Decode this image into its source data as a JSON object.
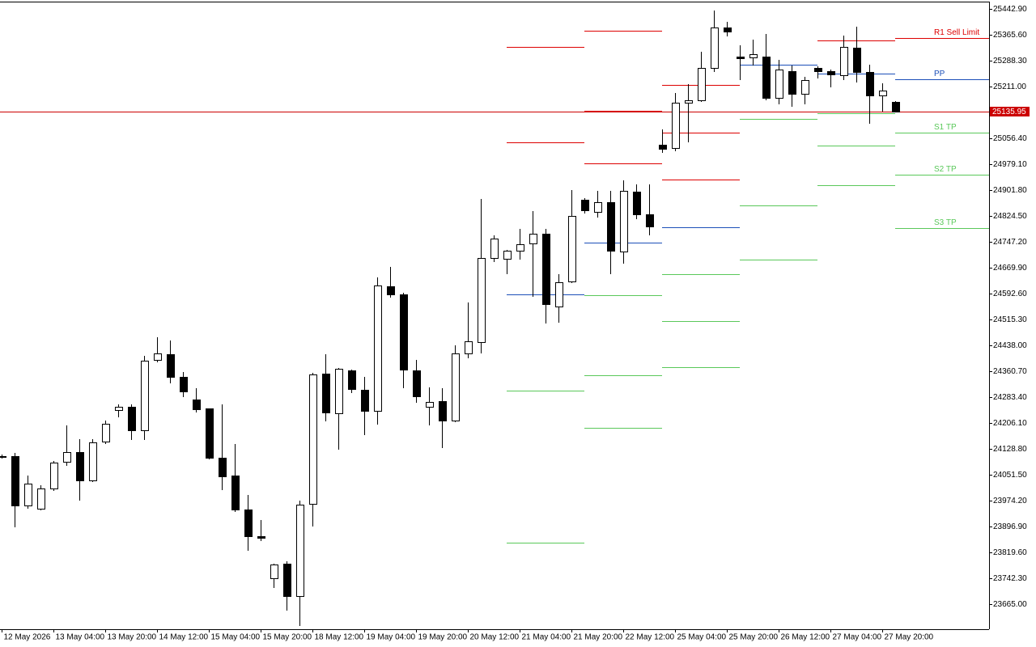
{
  "chart_data": {
    "type": "candlestick",
    "categories": [
      "12 May 2026",
      null,
      null,
      null,
      "13 May 04:00",
      null,
      null,
      null,
      "13 May 20:00",
      null,
      null,
      null,
      "14 May 12:00",
      null,
      null,
      null,
      "15 May 04:00",
      null,
      null,
      null,
      "15 May 20:00",
      null,
      null,
      null,
      "18 May 12:00",
      null,
      null,
      null,
      "19 May 04:00",
      null,
      null,
      null,
      "19 May 20:00",
      null,
      null,
      null,
      "20 May 12:00",
      null,
      null,
      null,
      "21 May 04:00",
      null,
      null,
      null,
      "21 May 20:00",
      null,
      null,
      null,
      "22 May 12:00",
      null,
      null,
      null,
      "25 May 04:00",
      null,
      null,
      null,
      "25 May 20:00",
      null,
      null,
      null,
      "26 May 12:00",
      null,
      null,
      null,
      "27 May 04:00",
      null,
      null,
      null,
      "27 May 20:00",
      null
    ],
    "open": [
      24107,
      24107,
      23960,
      23950,
      24010,
      24090,
      24119,
      24035,
      24151,
      24245,
      24254,
      24184,
      24395,
      24411,
      24344,
      24276,
      24250,
      24102,
      24049,
      23948,
      23868,
      23742,
      23786,
      23689,
      23965,
      24353,
      24235,
      24363,
      24305,
      24242,
      24614,
      24590,
      24363,
      24254,
      24271,
      24213,
      24414,
      24448,
      24699,
      24697,
      24721,
      24742,
      24771,
      24554,
      24629,
      24873,
      24837,
      24866,
      24718,
      24897,
      24829,
      25037,
      25027,
      25163,
      25170,
      25267,
      25387,
      25300,
      25298,
      25300,
      25177,
      25257,
      25189,
      25267,
      25257,
      25245,
      25327,
      25254,
      25184,
      25165
    ],
    "high": [
      24112,
      24117,
      24049,
      24020,
      24093,
      24199,
      24158,
      24158,
      24213,
      24262,
      24262,
      24407,
      24462,
      24452,
      24358,
      24310,
      24250,
      24262,
      24143,
      23991,
      23916,
      23786,
      23793,
      23974,
      24356,
      24411,
      24370,
      24365,
      24344,
      24641,
      24672,
      24595,
      24395,
      24312,
      24310,
      24438,
      24566,
      24875,
      24767,
      24723,
      24786,
      24839,
      24786,
      24651,
      24902,
      24878,
      24899,
      24899,
      24931,
      24919,
      24919,
      25083,
      25192,
      25218,
      25315,
      25438,
      25404,
      25334,
      25351,
      25368,
      25291,
      25274,
      25240,
      25271,
      25262,
      25363,
      25390,
      25276,
      25221,
      25168
    ],
    "low": [
      24102,
      23897,
      23952,
      23948,
      24006,
      24080,
      23977,
      24032,
      24146,
      24225,
      24158,
      24158,
      24390,
      24327,
      24286,
      24240,
      24100,
      24008,
      23943,
      23827,
      23856,
      23716,
      23648,
      23602,
      23899,
      24213,
      24129,
      24298,
      24172,
      24204,
      24583,
      24312,
      24269,
      24201,
      24134,
      24211,
      24402,
      24416,
      24689,
      24653,
      24697,
      24585,
      24506,
      24508,
      24626,
      24834,
      24822,
      24653,
      24684,
      24817,
      24769,
      25015,
      25020,
      25047,
      25168,
      25257,
      25363,
      25233,
      25276,
      25172,
      25160,
      25153,
      25160,
      25238,
      25211,
      25233,
      25225,
      25102,
      25139,
      25136
    ],
    "close": [
      24107,
      23960,
      24025,
      24010,
      24088,
      24119,
      24035,
      24148,
      24204,
      24254,
      24184,
      24392,
      24414,
      24344,
      24300,
      24247,
      24102,
      24047,
      23948,
      23868,
      23863,
      23783,
      23689,
      23962,
      24351,
      24237,
      24368,
      24308,
      24242,
      24617,
      24590,
      24365,
      24286,
      24269,
      24213,
      24414,
      24450,
      24699,
      24757,
      24721,
      24740,
      24771,
      24561,
      24626,
      24824,
      24841,
      24866,
      24721,
      24899,
      24829,
      24793,
      25025,
      25163,
      25170,
      25267,
      25387,
      25375,
      25296,
      25308,
      25177,
      25262,
      25189,
      25230,
      25257,
      25247,
      25329,
      25254,
      25184,
      25199,
      25135.95
    ],
    "bull_color": "#ffffff",
    "bear_color": "#000000",
    "wick_color": "#000000",
    "ylim": [
      23590,
      25462
    ],
    "yticks": [
      {
        "value": 23665.0,
        "label": "23665.00"
      },
      {
        "value": 23742.3,
        "label": "23742.30"
      },
      {
        "value": 23819.6,
        "label": "23819.60"
      },
      {
        "value": 23896.9,
        "label": "23896.90"
      },
      {
        "value": 23974.2,
        "label": "23974.20"
      },
      {
        "value": 24051.5,
        "label": "24051.50"
      },
      {
        "value": 24128.8,
        "label": "24128.80"
      },
      {
        "value": 24206.1,
        "label": "24206.10"
      },
      {
        "value": 24283.4,
        "label": "24283.40"
      },
      {
        "value": 24360.7,
        "label": "24360.70"
      },
      {
        "value": 24438.0,
        "label": "24438.00"
      },
      {
        "value": 24515.3,
        "label": "24515.30"
      },
      {
        "value": 24592.6,
        "label": "24592.60"
      },
      {
        "value": 24669.9,
        "label": "24669.90"
      },
      {
        "value": 24747.2,
        "label": "24747.20"
      },
      {
        "value": 24824.5,
        "label": "24824.50"
      },
      {
        "value": 24901.8,
        "label": "24901.80"
      },
      {
        "value": 24979.1,
        "label": "24979.10"
      },
      {
        "value": 25056.4,
        "label": "25056.40"
      },
      {
        "value": 25211.0,
        "label": "25211.00"
      },
      {
        "value": 25288.3,
        "label": "25288.30"
      },
      {
        "value": 25365.6,
        "label": "25365.60"
      },
      {
        "value": 25442.9,
        "label": "25442.90"
      }
    ],
    "current_price": 25135.95,
    "current_price_color": "#cc0000",
    "pivot_periods": [
      {
        "start": 39,
        "end": 45,
        "levels": [
          {
            "value": 25329,
            "color": "#dd0000"
          },
          {
            "value": 25044,
            "color": "#dd0000"
          },
          {
            "value": 24590,
            "color": "#1c4fb8"
          },
          {
            "value": 24303,
            "color": "#5ac85a"
          },
          {
            "value": 23849,
            "color": "#5ac85a"
          }
        ]
      },
      {
        "start": 45,
        "end": 51,
        "levels": [
          {
            "value": 25378,
            "color": "#dd0000"
          },
          {
            "value": 25139,
            "color": "#dd0000"
          },
          {
            "value": 24982,
            "color": "#dd0000"
          },
          {
            "value": 24745,
            "color": "#1c4fb8"
          },
          {
            "value": 24588,
            "color": "#5ac85a"
          },
          {
            "value": 24349,
            "color": "#5ac85a"
          },
          {
            "value": 24192,
            "color": "#5ac85a"
          }
        ]
      },
      {
        "start": 51,
        "end": 57,
        "levels": [
          {
            "value": 25216,
            "color": "#dd0000"
          },
          {
            "value": 25073,
            "color": "#dd0000"
          },
          {
            "value": 24933,
            "color": "#dd0000"
          },
          {
            "value": 24791,
            "color": "#1c4fb8"
          },
          {
            "value": 24651,
            "color": "#5ac85a"
          },
          {
            "value": 24510,
            "color": "#5ac85a"
          },
          {
            "value": 24373,
            "color": "#5ac85a"
          }
        ]
      },
      {
        "start": 57,
        "end": 63,
        "levels": [
          {
            "value": 25276,
            "color": "#1c4fb8"
          },
          {
            "value": 25114,
            "color": "#5ac85a"
          },
          {
            "value": 24856,
            "color": "#5ac85a"
          },
          {
            "value": 24694,
            "color": "#5ac85a"
          }
        ]
      },
      {
        "start": 63,
        "end": 69,
        "levels": [
          {
            "value": 25349,
            "color": "#dd0000"
          },
          {
            "value": 25250,
            "color": "#1c4fb8"
          },
          {
            "value": 25131,
            "color": "#5ac85a"
          },
          {
            "value": 25035,
            "color": "#5ac85a"
          },
          {
            "value": 24916,
            "color": "#5ac85a"
          }
        ]
      },
      {
        "start": 69,
        "levels": [
          {
            "name": "R1 Sell Limit",
            "value": 25356,
            "color": "#dd0000"
          },
          {
            "name": "PP",
            "value": 25233,
            "color": "#1c4fb8"
          },
          {
            "name": "S1 TP",
            "value": 25073,
            "color": "#5ac85a"
          },
          {
            "name": "S2 TP",
            "value": 24948,
            "color": "#5ac85a"
          },
          {
            "name": "S3 TP",
            "value": 24788,
            "color": "#5ac85a"
          }
        ]
      }
    ]
  }
}
